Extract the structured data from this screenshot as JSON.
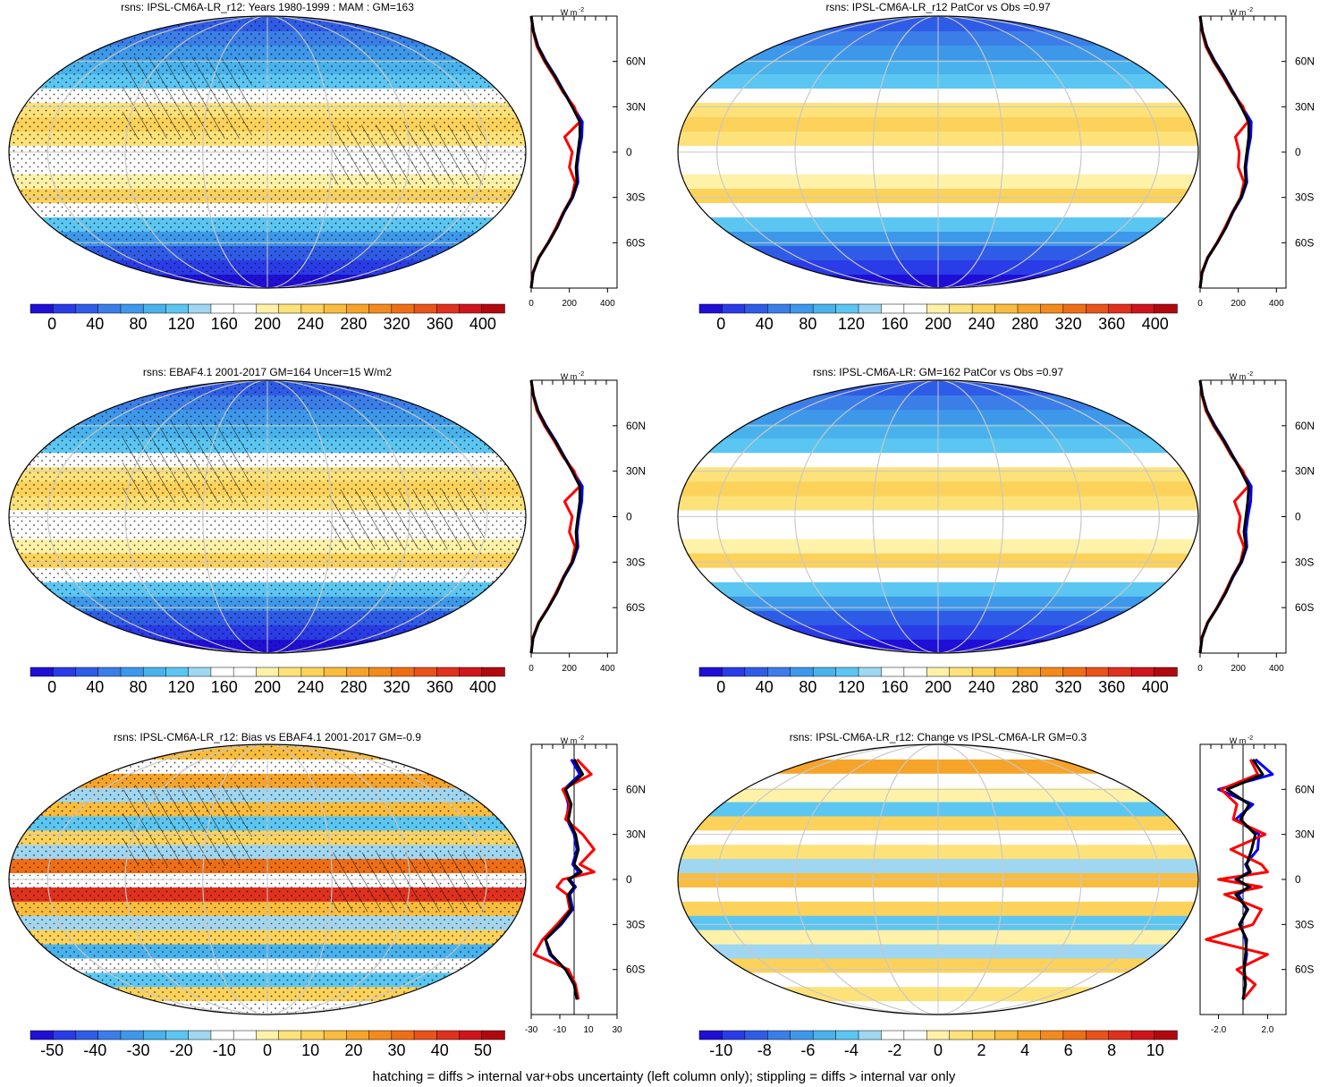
{
  "footer": "hatching = diffs > internal var+obs uncertainty (left column only); stippling = diffs > internal var only",
  "colors": {
    "abs_scale": [
      "#1f0fd6",
      "#2a3be8",
      "#2f5ce6",
      "#3b7ee8",
      "#3d98ea",
      "#49b2ec",
      "#5cc6f2",
      "#9fd7f2",
      "#ffffff",
      "#ffffff",
      "#fff2a8",
      "#fde27a",
      "#fcd25a",
      "#f9bc3c",
      "#f6a429",
      "#f28a1c",
      "#ef6e15",
      "#e9521a",
      "#e0301e",
      "#d0141c",
      "#b0080e"
    ],
    "bias_scale": [
      "#1f0fd6",
      "#2a3be8",
      "#2f5ce6",
      "#3b7ee8",
      "#3d98ea",
      "#49b2ec",
      "#5cc6f2",
      "#9fd7f2",
      "#ffffff",
      "#ffffff",
      "#fff2a8",
      "#fde27a",
      "#fcd25a",
      "#f9bc3c",
      "#f6a429",
      "#f28a1c",
      "#ef6e15",
      "#e9521a",
      "#e0301e",
      "#d0141c",
      "#b0080e"
    ],
    "line_model": "#000000",
    "line_obs": "#ff0000",
    "line_other": "#0000ff",
    "grid": "#c8c8c8"
  },
  "chart_data": [
    {
      "type": "heatmap",
      "title": "rsns: IPSL-CM6A-LR_r12: Years 1980-1999 : MAM : GM=163",
      "colorbar_labels": [
        "0",
        "40",
        "80",
        "120",
        "160",
        "200",
        "240",
        "280",
        "320",
        "360",
        "400"
      ],
      "colorbar_range": [
        -20,
        420
      ],
      "zonal": {
        "xlim": [
          0,
          450
        ],
        "xticks": [
          "0",
          "200",
          "400"
        ],
        "yticks": [
          "60N",
          "30N",
          "0",
          "30S",
          "60S"
        ],
        "unit_label": "W m",
        "unit_sup": "-2",
        "lat": [
          -90,
          -80,
          -70,
          -60,
          -50,
          -40,
          -30,
          -20,
          -10,
          0,
          10,
          20,
          30,
          40,
          50,
          60,
          70,
          80,
          90
        ],
        "series": [
          {
            "name": "model",
            "values": [
              0,
              10,
              40,
              90,
              135,
              170,
              215,
              240,
              235,
              245,
              255,
              255,
              215,
              170,
              125,
              75,
              35,
              12,
              0
            ]
          },
          {
            "name": "obs",
            "values": [
              0,
              8,
              38,
              88,
              130,
              168,
              212,
              230,
              200,
              215,
              175,
              255,
              225,
              165,
              120,
              70,
              30,
              10,
              0
            ]
          },
          {
            "name": "other",
            "values": [
              0,
              10,
              40,
              90,
              135,
              172,
              218,
              245,
              240,
              250,
              265,
              268,
              220,
              172,
              128,
              78,
              36,
              12,
              0
            ]
          }
        ]
      }
    },
    {
      "type": "heatmap",
      "title": "rsns: IPSL-CM6A-LR_r12 PatCor vs Obs =0.97",
      "colorbar_labels": [
        "0",
        "40",
        "80",
        "120",
        "160",
        "200",
        "240",
        "280",
        "320",
        "360",
        "400"
      ],
      "colorbar_range": [
        -20,
        420
      ],
      "zonal": {
        "xlim": [
          0,
          450
        ],
        "xticks": [
          "0",
          "200",
          "400"
        ],
        "yticks": [
          "60N",
          "30N",
          "0",
          "30S",
          "60S"
        ],
        "unit_label": "W m",
        "unit_sup": "-2",
        "lat": [
          -90,
          -80,
          -70,
          -60,
          -50,
          -40,
          -30,
          -20,
          -10,
          0,
          10,
          20,
          30,
          40,
          50,
          60,
          70,
          80,
          90
        ],
        "series": [
          {
            "name": "model",
            "values": [
              0,
              10,
              40,
              90,
              135,
              170,
              215,
              240,
              235,
              245,
              255,
              255,
              215,
              170,
              125,
              75,
              35,
              12,
              0
            ]
          },
          {
            "name": "obs",
            "values": [
              0,
              8,
              38,
              88,
              130,
              168,
              212,
              230,
              200,
              205,
              185,
              250,
              225,
              165,
              120,
              70,
              30,
              10,
              0
            ]
          },
          {
            "name": "other",
            "values": [
              0,
              10,
              40,
              90,
              135,
              172,
              218,
              245,
              240,
              250,
              265,
              268,
              220,
              172,
              128,
              78,
              36,
              12,
              0
            ]
          }
        ]
      }
    },
    {
      "type": "heatmap",
      "title": "rsns: EBAF4.1 2001-2017 GM=164 Uncer=15 W/m2",
      "colorbar_labels": [
        "0",
        "40",
        "80",
        "120",
        "160",
        "200",
        "240",
        "280",
        "320",
        "360",
        "400"
      ],
      "colorbar_range": [
        -20,
        420
      ],
      "zonal": {
        "xlim": [
          0,
          450
        ],
        "xticks": [
          "0",
          "200",
          "400"
        ],
        "yticks": [
          "60N",
          "30N",
          "0",
          "30S",
          "60S"
        ],
        "unit_label": "W m",
        "unit_sup": "-2",
        "lat": [
          -90,
          -80,
          -70,
          -60,
          -50,
          -40,
          -30,
          -20,
          -10,
          0,
          10,
          20,
          30,
          40,
          50,
          60,
          70,
          80,
          90
        ],
        "series": [
          {
            "name": "model",
            "values": [
              0,
              10,
              40,
              90,
              135,
              170,
              215,
              240,
              235,
              245,
              255,
              255,
              215,
              170,
              125,
              75,
              35,
              12,
              0
            ]
          },
          {
            "name": "obs",
            "values": [
              0,
              8,
              38,
              88,
              130,
              168,
              212,
              230,
              200,
              215,
              175,
              255,
              225,
              165,
              120,
              70,
              30,
              10,
              0
            ]
          },
          {
            "name": "other",
            "values": [
              0,
              10,
              40,
              90,
              135,
              172,
              218,
              245,
              240,
              250,
              265,
              268,
              220,
              172,
              128,
              78,
              36,
              12,
              0
            ]
          }
        ]
      }
    },
    {
      "type": "heatmap",
      "title": "rsns: IPSL-CM6A-LR: GM=162 PatCor vs Obs =0.97",
      "colorbar_labels": [
        "0",
        "40",
        "80",
        "120",
        "160",
        "200",
        "240",
        "280",
        "320",
        "360",
        "400"
      ],
      "colorbar_range": [
        -20,
        420
      ],
      "zonal": {
        "xlim": [
          0,
          450
        ],
        "xticks": [
          "0",
          "200",
          "400"
        ],
        "yticks": [
          "60N",
          "30N",
          "0",
          "30S",
          "60S"
        ],
        "unit_label": "W m",
        "unit_sup": "-2",
        "lat": [
          -90,
          -80,
          -70,
          -60,
          -50,
          -40,
          -30,
          -20,
          -10,
          0,
          10,
          20,
          30,
          40,
          50,
          60,
          70,
          80,
          90
        ],
        "series": [
          {
            "name": "model",
            "values": [
              0,
              10,
              40,
              90,
              135,
              170,
              215,
              240,
              230,
              240,
              250,
              255,
              215,
              170,
              125,
              75,
              35,
              12,
              0
            ]
          },
          {
            "name": "obs",
            "values": [
              0,
              8,
              38,
              88,
              130,
              168,
              212,
              230,
              200,
              210,
              180,
              252,
              225,
              165,
              120,
              70,
              30,
              10,
              0
            ]
          },
          {
            "name": "other",
            "values": [
              0,
              10,
              40,
              90,
              135,
              172,
              218,
              245,
              240,
              250,
              265,
              268,
              220,
              172,
              128,
              78,
              36,
              12,
              0
            ]
          }
        ]
      }
    },
    {
      "type": "heatmap",
      "title": "rsns: IPSL-CM6A-LR_r12: Bias vs EBAF4.1 2001-2017 GM=-0.9",
      "colorbar_labels": [
        "-50",
        "-40",
        "-30",
        "-20",
        "-10",
        "0",
        "10",
        "20",
        "30",
        "40",
        "50"
      ],
      "colorbar_range": [
        -55,
        55
      ],
      "zonal": {
        "xlim": [
          -30,
          30
        ],
        "xticks": [
          "-30",
          "-10",
          "10",
          "30"
        ],
        "yticks": [
          "60N",
          "30N",
          "0",
          "30S",
          "60S"
        ],
        "unit_label": "W m",
        "unit_sup": "-2",
        "lat": [
          -80,
          -70,
          -60,
          -50,
          -40,
          -30,
          -20,
          -10,
          -5,
          0,
          5,
          10,
          20,
          30,
          40,
          50,
          60,
          70,
          80
        ],
        "series": [
          {
            "name": "model",
            "values": [
              2,
              0,
              -6,
              -16,
              -20,
              -10,
              -2,
              -4,
              0,
              -4,
              5,
              0,
              3,
              1,
              -4,
              -2,
              -6,
              6,
              0
            ]
          },
          {
            "name": "obs",
            "values": [
              3,
              1,
              -4,
              -28,
              -22,
              -12,
              -3,
              -5,
              -12,
              -8,
              14,
              4,
              14,
              6,
              -6,
              -3,
              -8,
              12,
              2
            ]
          },
          {
            "name": "other",
            "values": [
              2,
              0,
              -6,
              -17,
              -20,
              -9,
              -1,
              -3,
              1,
              -3,
              3,
              -1,
              2,
              0,
              -5,
              -4,
              -7,
              4,
              -2
            ]
          }
        ]
      }
    },
    {
      "type": "heatmap",
      "title": "rsns: IPSL-CM6A-LR_r12: Change vs IPSL-CM6A-LR GM=0.3",
      "colorbar_labels": [
        "-10",
        "-8",
        "-6",
        "-4",
        "-2",
        "0",
        "2",
        "4",
        "6",
        "8",
        "10"
      ],
      "colorbar_range": [
        -11,
        11
      ],
      "zonal": {
        "xlim": [
          -3.5,
          3.5
        ],
        "xticks": [
          "-2.0",
          "2.0"
        ],
        "yticks": [
          "60N",
          "30N",
          "0",
          "30S",
          "60S"
        ],
        "unit_label": "W m",
        "unit_sup": "-2",
        "lat": [
          -80,
          -70,
          -60,
          -50,
          -40,
          -30,
          -20,
          -10,
          -5,
          0,
          5,
          10,
          20,
          30,
          40,
          50,
          60,
          70,
          80
        ],
        "series": [
          {
            "name": "model",
            "values": [
              0,
              0.2,
              0.1,
              0.2,
              0.3,
              -0.3,
              0.4,
              -0.6,
              0.5,
              -0.5,
              0.6,
              0.3,
              0.7,
              1.0,
              -0.2,
              0.5,
              -1.3,
              1.6,
              0.8
            ]
          },
          {
            "name": "obs",
            "values": [
              0,
              1.0,
              -0.5,
              2.0,
              -3.0,
              0.8,
              1.5,
              -1.5,
              1.5,
              -2.0,
              2.0,
              1.5,
              -1.0,
              1.8,
              -0.8,
              -0.5,
              -1.8,
              1.2,
              0.6
            ]
          },
          {
            "name": "other",
            "values": [
              0,
              0.2,
              0.1,
              0.3,
              0.2,
              -0.2,
              0.3,
              -0.4,
              0.6,
              -0.6,
              0.5,
              0.2,
              1.2,
              1.3,
              -0.6,
              0.8,
              -2.0,
              2.4,
              1.0
            ]
          }
        ]
      }
    }
  ]
}
